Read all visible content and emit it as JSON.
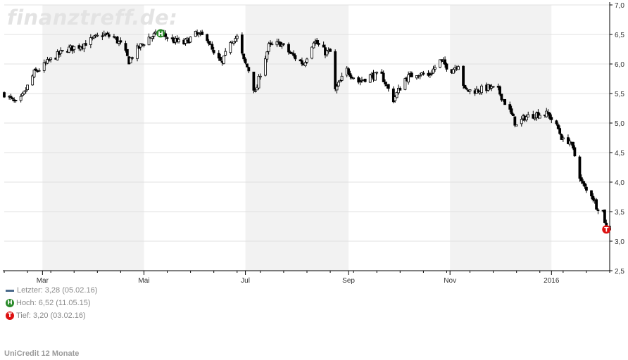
{
  "watermark": "finanztreff.de:",
  "footer_title": "UniCredit 12 Monate",
  "legend": {
    "last": "Letzter: 3,28 (05.02.16)",
    "high_badge": "H",
    "high": "Hoch: 6,52 (11.05.15)",
    "low_badge": "T",
    "low": "Tief: 3,20 (03.02.16)"
  },
  "colors": {
    "shade": "#f2f2f2",
    "grid": "#e0e0e0",
    "candle": "#000000",
    "last_line": "#4b6a8c",
    "high_marker": "#2a8a2a",
    "low_marker": "#dd1111"
  },
  "chart_data": {
    "type": "candlestick",
    "ylim": [
      2.5,
      7.0
    ],
    "y_ticks": [
      "2,5",
      "3,0",
      "3,5",
      "4,0",
      "4,5",
      "5,0",
      "5,5",
      "6,0",
      "6,5",
      "7,0"
    ],
    "y_axis_position": "right",
    "grid": true,
    "x_ticks": [
      {
        "label": "Mar",
        "date": "2015-03-01"
      },
      {
        "label": "Mai",
        "date": "2015-05-01"
      },
      {
        "label": "Jul",
        "date": "2015-07-01"
      },
      {
        "label": "Sep",
        "date": "2015-09-01"
      },
      {
        "label": "Nov",
        "date": "2015-11-01"
      },
      {
        "label": "2016",
        "date": "2016-01-01"
      }
    ],
    "x_range": [
      "2015-02-06",
      "2016-02-05"
    ],
    "shaded_months": [
      [
        "2015-03-01",
        "2015-05-01"
      ],
      [
        "2015-07-01",
        "2015-09-01"
      ],
      [
        "2015-11-01",
        "2016-01-01"
      ]
    ],
    "high": {
      "label": "H",
      "date": "2015-05-11",
      "value": 6.52
    },
    "low": {
      "label": "T",
      "date": "2016-02-03",
      "value": 3.2
    },
    "last": {
      "date": "2016-02-05",
      "value": 3.28
    },
    "price_path": [
      [
        "2015-02-06",
        5.5
      ],
      [
        "2015-02-10",
        5.4
      ],
      [
        "2015-02-14",
        5.3
      ],
      [
        "2015-02-18",
        5.5
      ],
      [
        "2015-02-24",
        5.85
      ],
      [
        "2015-03-01",
        5.95
      ],
      [
        "2015-03-05",
        6.05
      ],
      [
        "2015-03-10",
        6.15
      ],
      [
        "2015-03-16",
        6.25
      ],
      [
        "2015-03-23",
        6.3
      ],
      [
        "2015-03-30",
        6.4
      ],
      [
        "2015-04-06",
        6.5
      ],
      [
        "2015-04-13",
        6.45
      ],
      [
        "2015-04-18",
        6.3
      ],
      [
        "2015-04-22",
        6.05
      ],
      [
        "2015-04-27",
        6.25
      ],
      [
        "2015-05-04",
        6.45
      ],
      [
        "2015-05-11",
        6.52
      ],
      [
        "2015-05-18",
        6.4
      ],
      [
        "2015-05-25",
        6.35
      ],
      [
        "2015-06-01",
        6.5
      ],
      [
        "2015-06-08",
        6.45
      ],
      [
        "2015-06-12",
        6.15
      ],
      [
        "2015-06-17",
        6.0
      ],
      [
        "2015-06-22",
        6.4
      ],
      [
        "2015-06-26",
        6.45
      ],
      [
        "2015-06-30",
        6.05
      ],
      [
        "2015-07-03",
        5.9
      ],
      [
        "2015-07-07",
        5.5
      ],
      [
        "2015-07-10",
        5.85
      ],
      [
        "2015-07-15",
        6.3
      ],
      [
        "2015-07-22",
        6.35
      ],
      [
        "2015-07-29",
        6.15
      ],
      [
        "2015-08-05",
        6.0
      ],
      [
        "2015-08-11",
        6.4
      ],
      [
        "2015-08-18",
        6.2
      ],
      [
        "2015-08-21",
        6.2
      ],
      [
        "2015-08-24",
        5.55
      ],
      [
        "2015-08-31",
        5.9
      ],
      [
        "2015-09-07",
        5.7
      ],
      [
        "2015-09-14",
        5.8
      ],
      [
        "2015-09-21",
        5.8
      ],
      [
        "2015-09-28",
        5.4
      ],
      [
        "2015-10-05",
        5.75
      ],
      [
        "2015-10-12",
        5.85
      ],
      [
        "2015-10-19",
        5.8
      ],
      [
        "2015-10-26",
        6.05
      ],
      [
        "2015-11-02",
        5.9
      ],
      [
        "2015-11-06",
        6.0
      ],
      [
        "2015-11-10",
        5.55
      ],
      [
        "2015-11-17",
        5.55
      ],
      [
        "2015-11-24",
        5.6
      ],
      [
        "2015-11-30",
        5.55
      ],
      [
        "2015-12-07",
        5.2
      ],
      [
        "2015-12-11",
        4.95
      ],
      [
        "2015-12-16",
        5.1
      ],
      [
        "2015-12-23",
        5.15
      ],
      [
        "2015-12-30",
        5.15
      ],
      [
        "2016-01-05",
        4.9
      ],
      [
        "2016-01-08",
        4.7
      ],
      [
        "2016-01-12",
        4.7
      ],
      [
        "2016-01-15",
        4.45
      ],
      [
        "2016-01-19",
        4.0
      ],
      [
        "2016-01-22",
        3.85
      ],
      [
        "2016-01-25",
        3.8
      ],
      [
        "2016-01-28",
        3.6
      ],
      [
        "2016-02-01",
        3.5
      ],
      [
        "2016-02-03",
        3.2
      ],
      [
        "2016-02-05",
        3.28
      ]
    ]
  }
}
